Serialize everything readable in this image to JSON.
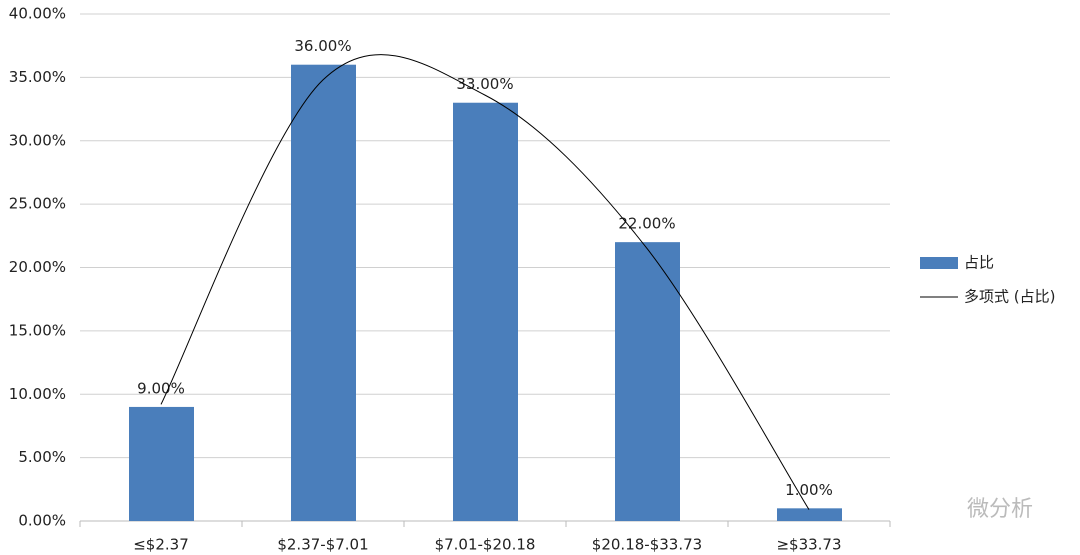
{
  "chart_data": {
    "type": "bar",
    "categories": [
      "≤$2.37",
      "$2.37-$7.01",
      "$7.01-$20.18",
      "$20.18-$33.73",
      "≥$33.73"
    ],
    "series": [
      {
        "name": "占比",
        "type": "bar",
        "color": "#4a7ebb",
        "values": [
          9,
          36,
          33,
          22,
          1
        ],
        "value_labels": [
          "9.00%",
          "36.00%",
          "33.00%",
          "22.00%",
          "1.00%"
        ]
      },
      {
        "name": "多项式 (占比)",
        "type": "line",
        "color": "#000000",
        "values": [
          9.2,
          34.8,
          33.6,
          21.5,
          0.9
        ]
      }
    ],
    "ylim": [
      0,
      40
    ],
    "yticks": [
      {
        "value": 0,
        "label": "0.00%"
      },
      {
        "value": 5,
        "label": "5.00%"
      },
      {
        "value": 10,
        "label": "10.00%"
      },
      {
        "value": 15,
        "label": "15.00%"
      },
      {
        "value": 20,
        "label": "20.00%"
      },
      {
        "value": 25,
        "label": "25.00%"
      },
      {
        "value": 30,
        "label": "30.00%"
      },
      {
        "value": 35,
        "label": "35.00%"
      },
      {
        "value": 40,
        "label": "40.00%"
      }
    ],
    "grid": true,
    "legend": "right",
    "watermark": "微分析"
  }
}
